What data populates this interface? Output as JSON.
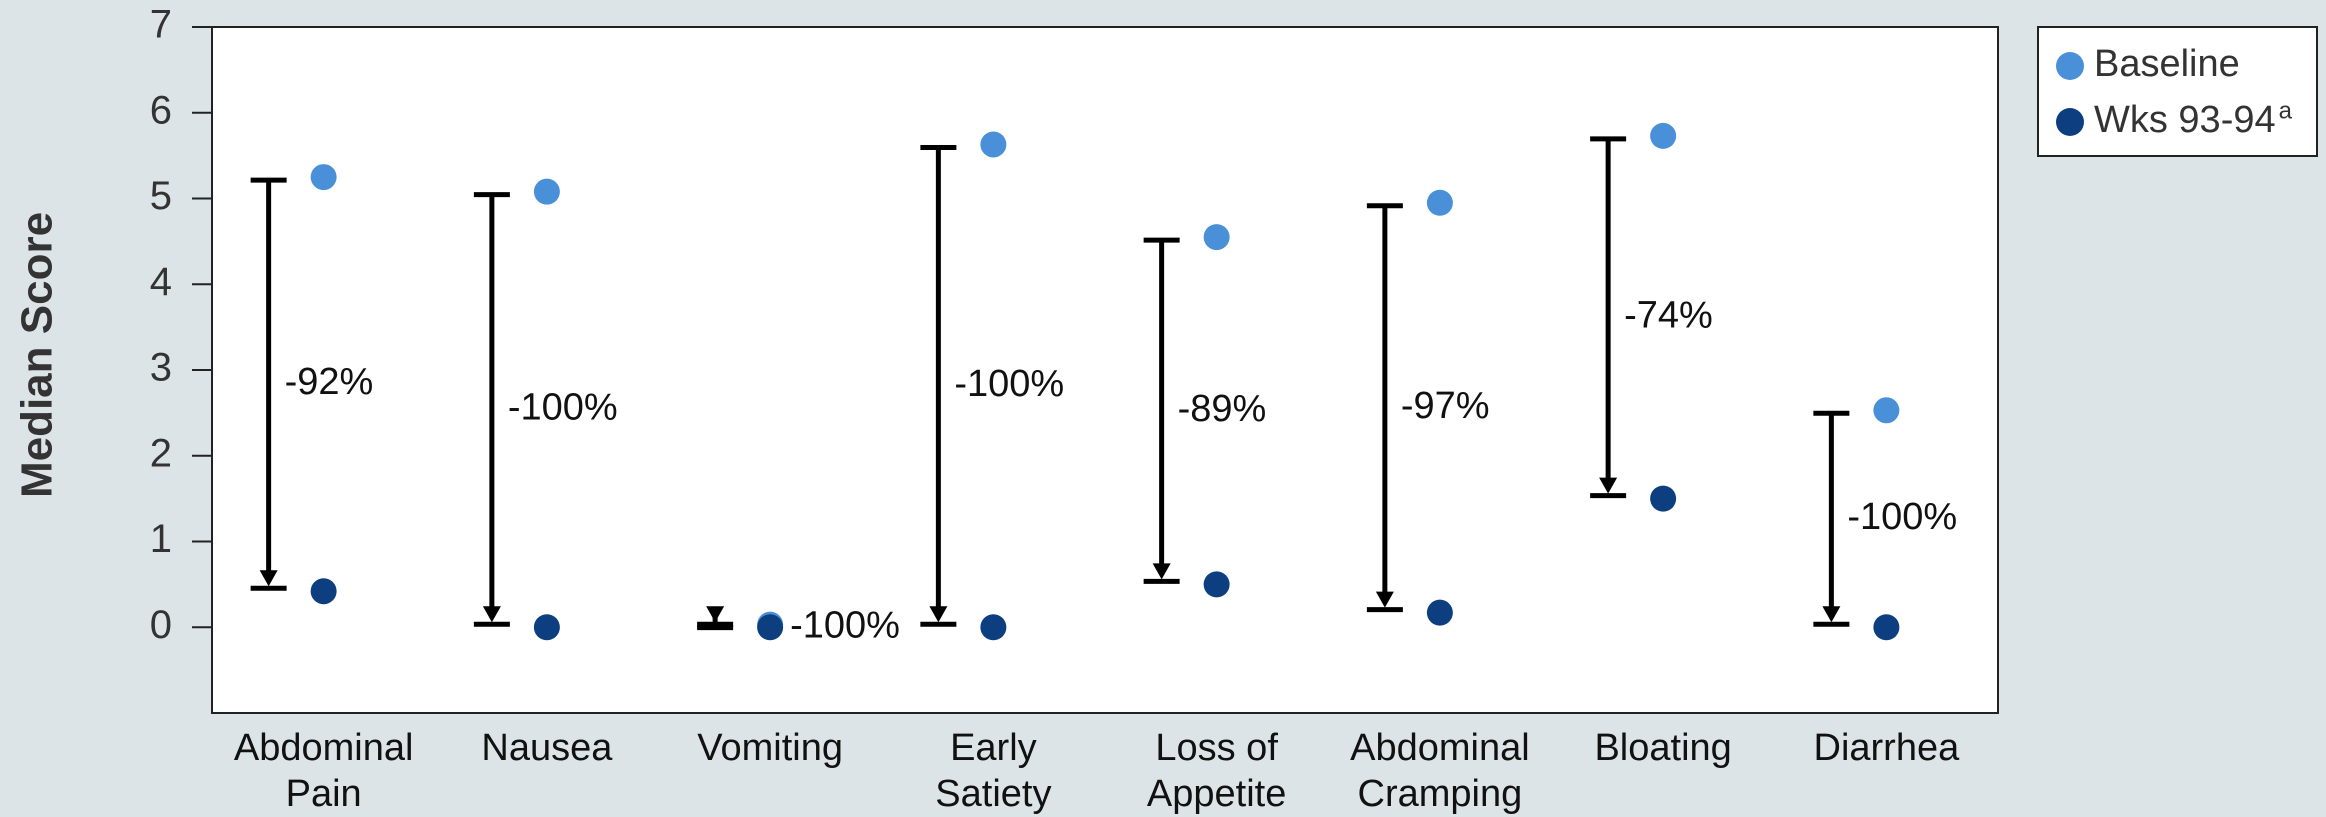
{
  "chart_data": {
    "type": "dumbbell",
    "y_label": "Median Score",
    "categories": [
      "Abdominal\nPain",
      "Nausea",
      "Vomiting",
      "Early\nSatiety",
      "Loss of\nAppetite",
      "Abdominal\nCramping",
      "Bloating",
      "Diarrhea"
    ],
    "series": [
      {
        "name": "Baseline",
        "color": "#4a90d9",
        "values": [
          5.25,
          5.08,
          0.03,
          5.63,
          4.55,
          4.95,
          5.73,
          2.53
        ]
      },
      {
        "name": "Wks 93-94",
        "superscript": "a",
        "color": "#0d3f80",
        "values": [
          0.42,
          0,
          0,
          0,
          0.5,
          0.17,
          1.5,
          0
        ]
      }
    ],
    "change_labels": [
      "-92%",
      "-100%",
      "-100%",
      "-100%",
      "-89%",
      "-97%",
      "-74%",
      "-100%"
    ],
    "ylim": [
      -1,
      7
    ],
    "yticks": [
      0,
      1,
      2,
      3,
      4,
      5,
      6,
      7
    ],
    "legend": "top-right"
  }
}
